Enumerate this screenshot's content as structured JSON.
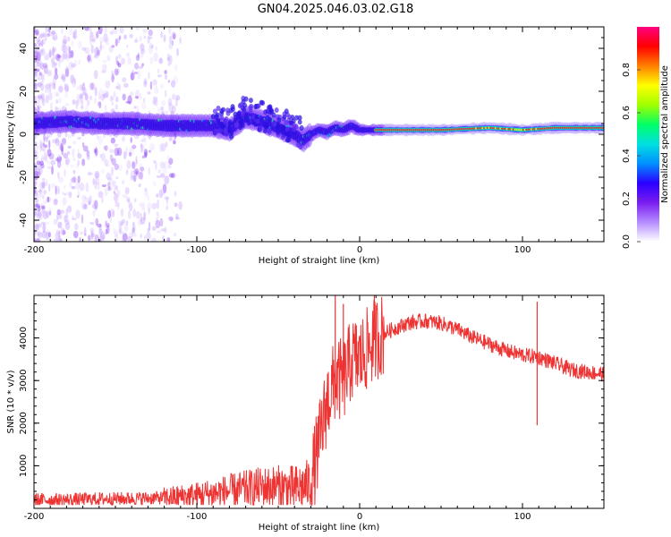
{
  "title": "GN04.2025.046.03.02.G18",
  "chart_data": [
    {
      "type": "heatmap",
      "xlabel": "Height of straight line (km)",
      "ylabel": "Frequency (Hz)",
      "xlim": [
        -200,
        150
      ],
      "ylim": [
        -50,
        50
      ],
      "x_ticks": [
        -200,
        -100,
        0,
        100
      ],
      "y_ticks": [
        -40,
        -20,
        0,
        20,
        40
      ],
      "colorbar": {
        "label": "Normalized spectral amplitude",
        "range": [
          0,
          1
        ],
        "ticks": [
          "0.0",
          "0.2",
          "0.4",
          "0.6",
          "0.8"
        ],
        "colors": [
          "#ffffff",
          "#b48cff",
          "#7a1cf0",
          "#2a00ff",
          "#0090ff",
          "#00e0e0",
          "#00ff66",
          "#a0ff00",
          "#ffff00",
          "#ff8000",
          "#ff0000",
          "#ff0080"
        ]
      },
      "ridge": {
        "x": [
          -200,
          -180,
          -160,
          -140,
          -120,
          -100,
          -90,
          -80,
          -70,
          -60,
          -50,
          -40,
          -35,
          -30,
          -25,
          -20,
          -15,
          -10,
          -5,
          0,
          20,
          50,
          80,
          100,
          120,
          150
        ],
        "y": [
          5,
          6,
          5,
          5,
          4,
          4,
          4,
          2,
          8,
          6,
          3,
          0,
          -3,
          0,
          2,
          1,
          3,
          2,
          4,
          2,
          2,
          2,
          3,
          2,
          3,
          3
        ]
      }
    },
    {
      "type": "line",
      "xlabel": "Height of straight line (km)",
      "ylabel": "SNR (10 * v/v)",
      "xlim": [
        -200,
        150
      ],
      "ylim": [
        0,
        5000
      ],
      "x_ticks": [
        -200,
        -100,
        0,
        100
      ],
      "y_ticks": [
        1000,
        2000,
        3000,
        4000
      ],
      "line_color": "#ee3333",
      "envelope": {
        "x": [
          -200,
          -180,
          -160,
          -140,
          -120,
          -100,
          -80,
          -70,
          -60,
          -50,
          -40,
          -35,
          -30,
          -25,
          -20,
          -15,
          -10,
          -5,
          0,
          10,
          20,
          30,
          40,
          50,
          60,
          70,
          80,
          90,
          100,
          110,
          120,
          130,
          150
        ],
        "y": [
          200,
          200,
          220,
          230,
          250,
          300,
          400,
          450,
          500,
          500,
          450,
          500,
          600,
          1500,
          2500,
          3000,
          3000,
          3500,
          3500,
          4000,
          4200,
          4350,
          4400,
          4350,
          4200,
          4000,
          3850,
          3700,
          3600,
          3550,
          3400,
          3250,
          3150
        ]
      },
      "spikes": [
        {
          "x": -15,
          "y": 5000
        },
        {
          "x": -10,
          "y": 4800
        },
        {
          "x": 9,
          "y": 5000
        },
        {
          "x": 109,
          "y": 4850
        },
        {
          "x": 109,
          "y": 1950
        }
      ]
    }
  ]
}
